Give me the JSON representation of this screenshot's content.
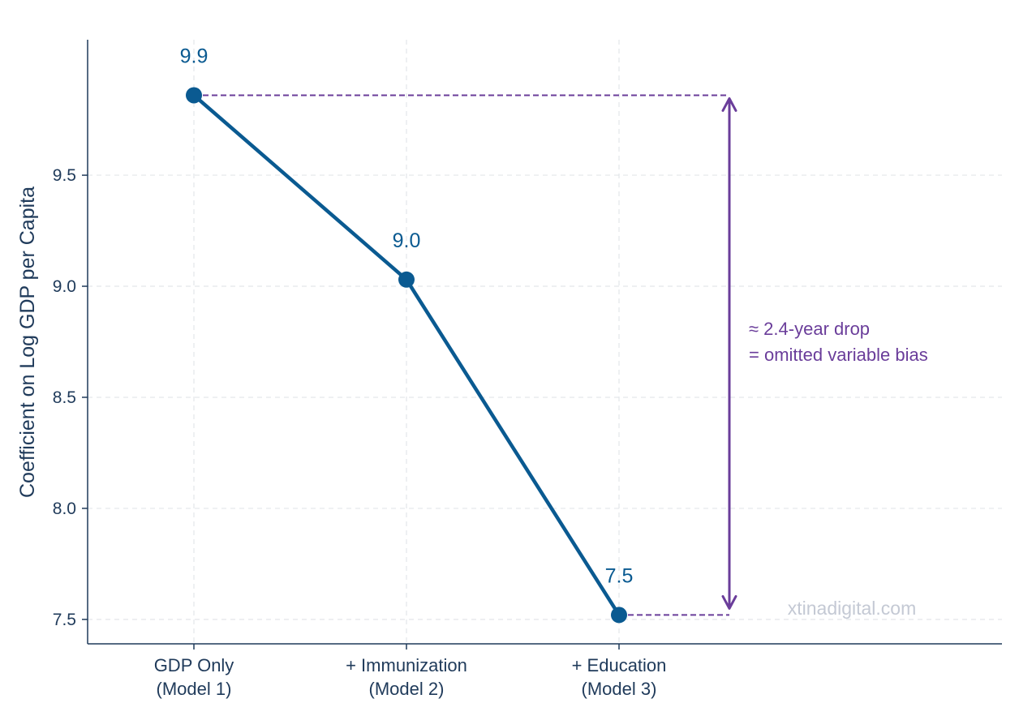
{
  "chart_data": {
    "type": "line",
    "categories": [
      "GDP Only\n(Model 1)",
      "+ Immunization\n(Model 2)",
      "+ Education\n(Model 3)"
    ],
    "values": [
      9.86,
      9.03,
      7.52
    ],
    "data_labels": [
      "9.9",
      "9.0",
      "7.5"
    ],
    "title": "",
    "xlabel": "",
    "ylabel": "Coefficient on Log GDP per Capita",
    "ylim": [
      7.39,
      10.11
    ],
    "yticks": [
      7.5,
      8.0,
      8.5,
      9.0,
      9.5
    ],
    "ytick_labels": [
      "7.5",
      "8.0",
      "8.5",
      "9.0",
      "9.5"
    ],
    "grid": true,
    "annotation": {
      "lines": [
        "≈ 2.4-year drop",
        "= omitted variable bias"
      ],
      "from_value": 9.86,
      "to_value": 7.52
    },
    "watermark": "xtinadigital.com",
    "colors": {
      "series": "#0a5a91",
      "annotation": "#6a3d9a",
      "axis": "#1f3a5a",
      "grid": "#e3e6ea",
      "watermark": "#c4c9d4"
    }
  }
}
